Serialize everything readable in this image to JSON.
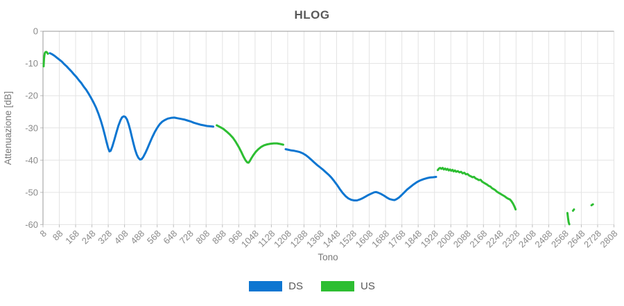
{
  "colors": {
    "ds_line": "#0d76d1",
    "us_line": "#2dbe32",
    "grid": "#e3e3e3",
    "axis": "#9a9a9a",
    "tick": "#bbbbbb",
    "title_text": "#595959",
    "tick_text": "#8a8a8a"
  },
  "chart_data": {
    "type": "line",
    "title": "HLOG",
    "xlabel": "Tono",
    "ylabel": "Attenuazione [dB]",
    "xlim": [
      8,
      2808
    ],
    "ylim": [
      -60,
      0
    ],
    "grid": true,
    "legend_position": "bottom",
    "xticks": [
      8,
      88,
      168,
      248,
      328,
      408,
      488,
      568,
      648,
      728,
      808,
      888,
      968,
      1048,
      1128,
      1208,
      1288,
      1368,
      1448,
      1528,
      1608,
      1688,
      1768,
      1848,
      1928,
      2008,
      2088,
      2168,
      2248,
      2328,
      2408,
      2488,
      2568,
      2648,
      2728,
      2808
    ],
    "yticks": [
      0,
      -10,
      -20,
      -30,
      -40,
      -50,
      -60
    ],
    "series": [
      {
        "name": "DS",
        "color": "#0d76d1",
        "segments": [
          [
            [
              42,
              -6.8
            ],
            [
              52,
              -7.1
            ],
            [
              64,
              -7.6
            ],
            [
              76,
              -8.2
            ],
            [
              88,
              -8.8
            ],
            [
              100,
              -9.4
            ],
            [
              112,
              -10.2
            ],
            [
              124,
              -10.9
            ],
            [
              136,
              -11.7
            ],
            [
              148,
              -12.5
            ],
            [
              160,
              -13.4
            ],
            [
              172,
              -14.2
            ],
            [
              184,
              -15.2
            ],
            [
              196,
              -16.1
            ],
            [
              208,
              -17.2
            ],
            [
              220,
              -18.2
            ],
            [
              232,
              -19.4
            ],
            [
              244,
              -20.7
            ],
            [
              256,
              -22.1
            ],
            [
              268,
              -23.7
            ],
            [
              280,
              -25.6
            ],
            [
              292,
              -27.8
            ],
            [
              302,
              -30.0
            ],
            [
              312,
              -32.4
            ],
            [
              320,
              -34.5
            ],
            [
              328,
              -36.3
            ],
            [
              334,
              -37.3
            ],
            [
              340,
              -37.1
            ],
            [
              348,
              -35.8
            ],
            [
              358,
              -33.7
            ],
            [
              368,
              -31.4
            ],
            [
              378,
              -29.3
            ],
            [
              388,
              -27.6
            ],
            [
              396,
              -26.7
            ],
            [
              404,
              -26.4
            ],
            [
              412,
              -26.6
            ],
            [
              420,
              -27.4
            ],
            [
              428,
              -28.8
            ],
            [
              436,
              -30.7
            ],
            [
              444,
              -32.8
            ],
            [
              452,
              -34.9
            ],
            [
              460,
              -36.8
            ],
            [
              468,
              -38.3
            ],
            [
              476,
              -39.3
            ],
            [
              484,
              -39.8
            ],
            [
              492,
              -39.7
            ],
            [
              500,
              -39.0
            ],
            [
              510,
              -37.8
            ],
            [
              520,
              -36.4
            ],
            [
              532,
              -34.6
            ],
            [
              544,
              -32.9
            ],
            [
              556,
              -31.3
            ],
            [
              568,
              -30.0
            ],
            [
              580,
              -28.9
            ],
            [
              592,
              -28.1
            ],
            [
              604,
              -27.6
            ],
            [
              620,
              -27.1
            ],
            [
              636,
              -26.9
            ],
            [
              652,
              -26.8
            ],
            [
              668,
              -27.0
            ],
            [
              684,
              -27.2
            ],
            [
              700,
              -27.4
            ],
            [
              716,
              -27.7
            ],
            [
              732,
              -28.0
            ],
            [
              748,
              -28.4
            ],
            [
              764,
              -28.7
            ],
            [
              780,
              -29.0
            ],
            [
              796,
              -29.2
            ],
            [
              812,
              -29.4
            ],
            [
              828,
              -29.5
            ],
            [
              843,
              -29.6
            ]
          ],
          [
            [
              1198,
              -36.6
            ],
            [
              1212,
              -36.8
            ],
            [
              1226,
              -37.0
            ],
            [
              1240,
              -37.1
            ],
            [
              1254,
              -37.3
            ],
            [
              1268,
              -37.5
            ],
            [
              1282,
              -37.9
            ],
            [
              1296,
              -38.4
            ],
            [
              1310,
              -39.1
            ],
            [
              1324,
              -39.9
            ],
            [
              1338,
              -40.7
            ],
            [
              1352,
              -41.5
            ],
            [
              1366,
              -42.2
            ],
            [
              1380,
              -42.9
            ],
            [
              1394,
              -43.7
            ],
            [
              1408,
              -44.5
            ],
            [
              1422,
              -45.4
            ],
            [
              1436,
              -46.5
            ],
            [
              1450,
              -47.7
            ],
            [
              1464,
              -49.0
            ],
            [
              1478,
              -50.2
            ],
            [
              1492,
              -51.2
            ],
            [
              1506,
              -51.9
            ],
            [
              1520,
              -52.3
            ],
            [
              1534,
              -52.5
            ],
            [
              1548,
              -52.5
            ],
            [
              1562,
              -52.2
            ],
            [
              1576,
              -51.8
            ],
            [
              1590,
              -51.3
            ],
            [
              1604,
              -50.8
            ],
            [
              1618,
              -50.4
            ],
            [
              1632,
              -50.0
            ],
            [
              1642,
              -49.9
            ],
            [
              1652,
              -50.1
            ],
            [
              1666,
              -50.5
            ],
            [
              1680,
              -51.0
            ],
            [
              1694,
              -51.6
            ],
            [
              1708,
              -52.1
            ],
            [
              1722,
              -52.3
            ],
            [
              1732,
              -52.4
            ],
            [
              1742,
              -52.1
            ],
            [
              1754,
              -51.6
            ],
            [
              1766,
              -50.9
            ],
            [
              1780,
              -50.0
            ],
            [
              1794,
              -49.1
            ],
            [
              1810,
              -48.3
            ],
            [
              1826,
              -47.5
            ],
            [
              1842,
              -46.8
            ],
            [
              1858,
              -46.3
            ],
            [
              1874,
              -45.9
            ],
            [
              1890,
              -45.6
            ],
            [
              1906,
              -45.4
            ],
            [
              1922,
              -45.3
            ],
            [
              1936,
              -45.2
            ]
          ]
        ]
      },
      {
        "name": "US",
        "color": "#2dbe32",
        "segments": [
          [
            [
              11,
              -10.9
            ],
            [
              12,
              -9.6
            ],
            [
              13,
              -8.5
            ],
            [
              15,
              -7.4
            ],
            [
              17,
              -6.8
            ],
            [
              20,
              -6.5
            ],
            [
              24,
              -6.4
            ],
            [
              28,
              -6.6
            ],
            [
              32,
              -7.0
            ]
          ],
          [
            [
              860,
              -29.2
            ],
            [
              876,
              -29.7
            ],
            [
              892,
              -30.3
            ],
            [
              908,
              -31.1
            ],
            [
              924,
              -32.0
            ],
            [
              940,
              -33.1
            ],
            [
              954,
              -34.4
            ],
            [
              968,
              -35.9
            ],
            [
              980,
              -37.4
            ],
            [
              992,
              -39.0
            ],
            [
              1002,
              -40.1
            ],
            [
              1010,
              -40.7
            ],
            [
              1016,
              -40.8
            ],
            [
              1022,
              -40.3
            ],
            [
              1030,
              -39.4
            ],
            [
              1040,
              -38.4
            ],
            [
              1052,
              -37.4
            ],
            [
              1064,
              -36.6
            ],
            [
              1078,
              -35.9
            ],
            [
              1092,
              -35.4
            ],
            [
              1108,
              -35.1
            ],
            [
              1124,
              -34.9
            ],
            [
              1140,
              -34.8
            ],
            [
              1156,
              -34.8
            ],
            [
              1172,
              -35.0
            ],
            [
              1186,
              -35.2
            ]
          ],
          [
            [
              1944,
              -43.1
            ],
            [
              1950,
              -42.6
            ],
            [
              1956,
              -42.4
            ],
            [
              1962,
              -42.7
            ],
            [
              1968,
              -42.4
            ],
            [
              1974,
              -42.9
            ],
            [
              1980,
              -42.6
            ],
            [
              1986,
              -43.0
            ],
            [
              1992,
              -42.7
            ],
            [
              1998,
              -43.2
            ],
            [
              2004,
              -42.9
            ],
            [
              2010,
              -43.3
            ],
            [
              2016,
              -43.0
            ],
            [
              2022,
              -43.5
            ],
            [
              2028,
              -43.2
            ],
            [
              2034,
              -43.6
            ],
            [
              2042,
              -43.4
            ],
            [
              2050,
              -43.8
            ],
            [
              2058,
              -43.6
            ],
            [
              2066,
              -44.1
            ],
            [
              2074,
              -43.9
            ],
            [
              2082,
              -44.4
            ],
            [
              2090,
              -44.3
            ],
            [
              2098,
              -44.8
            ],
            [
              2106,
              -45.0
            ],
            [
              2114,
              -45.3
            ],
            [
              2122,
              -45.2
            ],
            [
              2130,
              -45.7
            ],
            [
              2138,
              -45.9
            ],
            [
              2146,
              -46.2
            ],
            [
              2154,
              -46.1
            ],
            [
              2162,
              -46.7
            ],
            [
              2170,
              -47.0
            ],
            [
              2178,
              -47.3
            ],
            [
              2186,
              -47.6
            ],
            [
              2194,
              -48.0
            ],
            [
              2202,
              -48.2
            ],
            [
              2210,
              -48.7
            ],
            [
              2218,
              -49.0
            ],
            [
              2226,
              -49.3
            ],
            [
              2234,
              -49.8
            ],
            [
              2242,
              -50.1
            ],
            [
              2250,
              -50.4
            ],
            [
              2258,
              -50.7
            ],
            [
              2266,
              -51.0
            ],
            [
              2274,
              -51.3
            ],
            [
              2282,
              -51.7
            ],
            [
              2290,
              -52.0
            ],
            [
              2298,
              -52.2
            ],
            [
              2306,
              -52.8
            ],
            [
              2314,
              -53.6
            ],
            [
              2320,
              -54.4
            ],
            [
              2326,
              -55.3
            ]
          ],
          [
            [
              2580,
              -56.4
            ],
            [
              2583,
              -58.0
            ],
            [
              2586,
              -59.3
            ],
            [
              2589,
              -59.9
            ]
          ],
          [
            [
              2607,
              -55.7
            ],
            [
              2612,
              -55.3
            ]
          ],
          [
            [
              2698,
              -54.0
            ],
            [
              2705,
              -53.7
            ]
          ]
        ]
      }
    ]
  }
}
